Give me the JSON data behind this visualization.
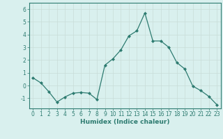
{
  "x": [
    0,
    1,
    2,
    3,
    4,
    5,
    6,
    7,
    8,
    9,
    10,
    11,
    12,
    13,
    14,
    15,
    16,
    17,
    18,
    19,
    20,
    21,
    22,
    23
  ],
  "y": [
    0.6,
    0.2,
    -0.5,
    -1.3,
    -0.9,
    -0.6,
    -0.55,
    -0.6,
    -1.1,
    1.6,
    2.1,
    2.8,
    3.9,
    4.3,
    5.7,
    3.5,
    3.5,
    3.0,
    1.8,
    1.3,
    -0.05,
    -0.4,
    -0.85,
    -1.5
  ],
  "line_color": "#2d7b70",
  "marker": "D",
  "markersize": 2.0,
  "linewidth": 0.9,
  "bg_color": "#d9f0ee",
  "grid_color": "#c8dcd8",
  "xlabel": "Humidex (Indice chaleur)",
  "xlim": [
    -0.5,
    23.5
  ],
  "ylim": [
    -1.8,
    6.5
  ],
  "yticks": [
    -1,
    0,
    1,
    2,
    3,
    4,
    5,
    6
  ],
  "xticks": [
    0,
    1,
    2,
    3,
    4,
    5,
    6,
    7,
    8,
    9,
    10,
    11,
    12,
    13,
    14,
    15,
    16,
    17,
    18,
    19,
    20,
    21,
    22,
    23
  ],
  "tick_color": "#2d7b70",
  "label_color": "#2d7b70",
  "spine_color": "#2d7b70",
  "xlabel_fontsize": 6.5,
  "tick_fontsize": 5.5
}
